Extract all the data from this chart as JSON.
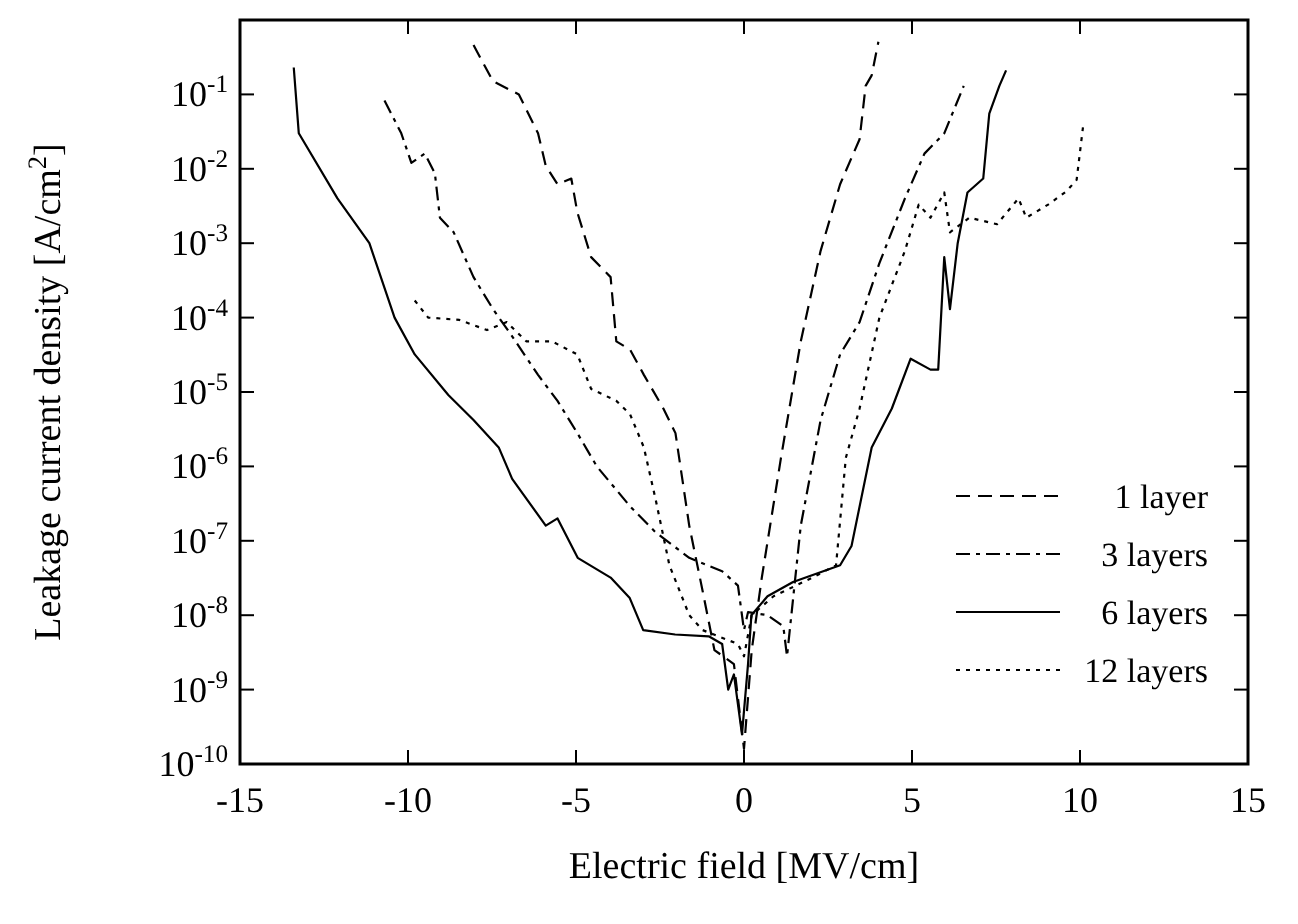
{
  "chart_data": {
    "type": "line",
    "xlabel": "Electric field [MV/cm]",
    "ylabel": "Leakage current density [A/cm$^{2}$]",
    "xlim": [
      -15,
      15
    ],
    "xticks": [
      -15,
      -10,
      -5,
      0,
      5,
      10,
      15
    ],
    "ylim": [
      1e-10,
      1
    ],
    "log": true,
    "yticks": [
      {
        "value": 1e-10,
        "label": "10$^{-10}$"
      },
      {
        "value": 1e-09,
        "label": "10$^{-9}$"
      },
      {
        "value": 1e-08,
        "label": "10$^{-8}$"
      },
      {
        "value": 1e-07,
        "label": "10$^{-7}$"
      },
      {
        "value": 1e-06,
        "label": "10$^{-6}$"
      },
      {
        "value": 1e-05,
        "label": "10$^{-5}$"
      },
      {
        "value": 0.0001,
        "label": "10$^{-4}$"
      },
      {
        "value": 0.001,
        "label": "10$^{-3}$"
      },
      {
        "value": 0.01,
        "label": "10$^{-2}$"
      },
      {
        "value": 0.1,
        "label": "10$^{-1}$"
      }
    ],
    "grid": false,
    "legend": "bottom right",
    "marker": "none",
    "series": [
      {
        "name": "1 layer",
        "color": "#000000",
        "line_style": "dashed",
        "x": [
          -8.05,
          -7.47,
          -6.7,
          -6.13,
          -5.9,
          -5.55,
          -5.14,
          -4.96,
          -4.55,
          -3.97,
          -3.8,
          -3.39,
          -2.98,
          -2.4,
          -2.04,
          -1.63,
          -1.23,
          -0.88,
          -0.3,
          0,
          0.23,
          0.53,
          1.1,
          1.69,
          2.28,
          2.86,
          3.44,
          3.62,
          3.8,
          4.0
        ],
        "values": [
          0.46,
          0.15,
          0.1,
          0.03,
          0.011,
          0.0062,
          0.0074,
          0.0026,
          0.00065,
          0.00035,
          4.8e-05,
          3.7e-05,
          1.7e-05,
          6e-06,
          2.8e-06,
          1.6e-07,
          2.1e-08,
          3.4e-09,
          2.2e-09,
          1.6e-10,
          3.4e-09,
          3.2e-08,
          1.3e-06,
          4.8e-05,
          0.00079,
          0.0062,
          0.025,
          0.13,
          0.18,
          0.51
        ]
      },
      {
        "name": "3 layers",
        "color": "#000000",
        "line_style": "dashdot",
        "x": [
          -10.7,
          -10.2,
          -9.9,
          -9.5,
          -9.2,
          -9.05,
          -8.64,
          -8.05,
          -7.47,
          -6.9,
          -6.13,
          -5.55,
          -4.96,
          -4.38,
          -3.39,
          -2.63,
          -1.63,
          -0.65,
          -0.18,
          0,
          0.12,
          0.7,
          1.17,
          1.28,
          1.69,
          2.28,
          2.86,
          3.44,
          4.03,
          4.79,
          5.37,
          5.96,
          6.54
        ],
        "values": [
          0.083,
          0.03,
          0.012,
          0.016,
          0.0087,
          0.0022,
          0.0014,
          0.00035,
          0.00013,
          5.6e-05,
          1.7e-05,
          7.6e-06,
          2.8e-06,
          1e-06,
          2.9e-07,
          1.3e-07,
          5.9e-08,
          3.9e-08,
          2.5e-08,
          6.3e-09,
          1.1e-08,
          1e-08,
          7.1e-09,
          2.8e-09,
          1.6e-07,
          4.2e-06,
          3.2e-05,
          8.7e-05,
          0.00054,
          0.004,
          0.016,
          0.03,
          0.13
        ]
      },
      {
        "name": "6 layers",
        "color": "#000000",
        "line_style": "solid",
        "x": [
          -13.4,
          -13.25,
          -12.1,
          -11.15,
          -10.4,
          -9.8,
          -8.8,
          -8.05,
          -7.3,
          -6.9,
          -5.9,
          -5.55,
          -4.95,
          -3.97,
          -3.4,
          -3.0,
          -2.05,
          -1.05,
          -0.65,
          -0.47,
          -0.3,
          -0.06,
          0.12,
          0.22,
          0.7,
          1.46,
          2.86,
          3.2,
          3.8,
          4.4,
          4.96,
          5.55,
          5.78,
          5.96,
          6.13,
          6.36,
          6.65,
          7.12,
          7.3,
          7.6,
          7.8
        ],
        "values": [
          0.23,
          0.03,
          0.004,
          0.001,
          0.0001,
          3.2e-05,
          9.1e-06,
          4.2e-06,
          1.8e-06,
          6.8e-07,
          1.6e-07,
          2e-07,
          5.9e-08,
          3.2e-08,
          1.7e-08,
          6.3e-09,
          5.5e-09,
          5.2e-09,
          4.1e-09,
          1e-09,
          1.6e-09,
          2.5e-10,
          2.2e-09,
          1e-08,
          1.8e-08,
          2.8e-08,
          4.7e-08,
          8.5e-08,
          1.8e-06,
          6e-06,
          2.8e-05,
          2e-05,
          2e-05,
          0.00065,
          0.00013,
          0.001,
          0.0048,
          0.0074,
          0.055,
          0.13,
          0.21
        ]
      },
      {
        "name": "12 layers",
        "color": "#000000",
        "line_style": "dotted",
        "x": [
          -9.8,
          -9.4,
          -8.47,
          -7.65,
          -7.06,
          -6.48,
          -5.72,
          -4.96,
          -4.55,
          -3.8,
          -3.39,
          -2.98,
          -2.63,
          -2.22,
          -1.63,
          -1.23,
          -0.76,
          -0.18,
          0,
          0.23,
          0.88,
          2.04,
          2.74,
          3.03,
          3.44,
          4.03,
          4.79,
          5.2,
          5.55,
          5.96,
          6.13,
          6.71,
          7.53,
          8.17,
          8.4,
          9.05,
          9.6,
          9.9,
          10.1
        ],
        "values": [
          0.00017,
          0.0001,
          9.3e-05,
          6.8e-05,
          8.7e-05,
          4.8e-05,
          4.8e-05,
          3.2e-05,
          1.1e-05,
          7.6e-06,
          5e-06,
          1.8e-06,
          3.6e-07,
          4.7e-08,
          1e-08,
          6.3e-09,
          5.2e-09,
          4.1e-09,
          2.8e-09,
          1e-08,
          1.8e-08,
          3.2e-08,
          4.7e-08,
          1.3e-06,
          6e-06,
          0.0001,
          0.00079,
          0.0033,
          0.0022,
          0.0048,
          0.0014,
          0.0022,
          0.0018,
          0.004,
          0.0022,
          0.0033,
          0.005,
          0.0071,
          0.04
        ]
      }
    ]
  }
}
